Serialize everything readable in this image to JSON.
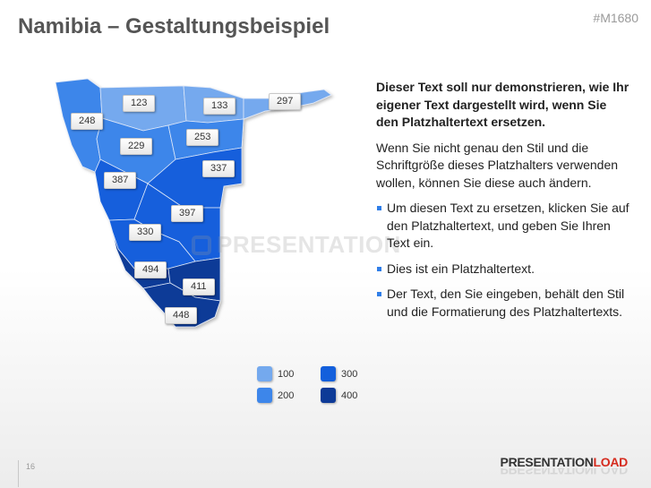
{
  "slide": {
    "title": "Namibia – Gestaltungsbeispiel",
    "code": "#M1680",
    "page_number": "16",
    "watermark": "PRESENTATION",
    "logo": {
      "part1": "PRESENTATION",
      "part2": "LOAD"
    }
  },
  "map": {
    "labels": [
      "123",
      "133",
      "297",
      "248",
      "229",
      "253",
      "337",
      "387",
      "397",
      "330",
      "494",
      "411",
      "448"
    ]
  },
  "legend": [
    {
      "label": "100",
      "color": "#74a9ee"
    },
    {
      "label": "200",
      "color": "#3d86ea"
    },
    {
      "label": "300",
      "color": "#135fdc"
    },
    {
      "label": "400",
      "color": "#0d3a97"
    }
  ],
  "text": {
    "heading": "Dieser Text soll nur demonstrieren, wie Ihr eigener Text dargestellt wird, wenn Sie den Platzhaltertext ersetzen.",
    "paragraph": "Wenn Sie nicht genau den Stil und die Schriftgröße dieses Platzhalters verwenden wollen, können Sie diese auch ändern.",
    "bullets": [
      "Um diesen Text zu ersetzen, klicken Sie auf den Platzhaltertext, und geben Sie Ihren Text ein.",
      "Dies ist ein Platzhaltertext.",
      "Der Text, den Sie eingeben, behält den Stil und die Formatierung des Platzhaltertexts."
    ]
  }
}
